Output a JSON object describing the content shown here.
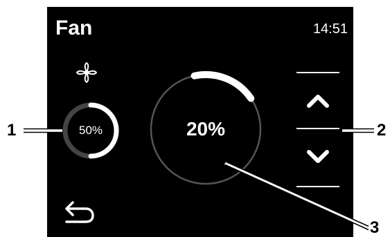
{
  "screen": {
    "title": "Fan",
    "clock": "14:51"
  },
  "fan_status": {
    "icon": "fan-icon",
    "level_label": "50%",
    "level_fraction": 0.5
  },
  "setpoint": {
    "value_label": "20%",
    "value_fraction": 0.2
  },
  "controls": {
    "up_icon": "chevron-up-icon",
    "down_icon": "chevron-down-icon",
    "back_icon": "back-arrow-icon"
  },
  "callouts": {
    "one": "1",
    "two": "2",
    "three": "3"
  },
  "colors": {
    "screen_bg": "#000000",
    "foreground": "#ffffff",
    "track": "#444444",
    "page_bg": "#ffffff"
  }
}
